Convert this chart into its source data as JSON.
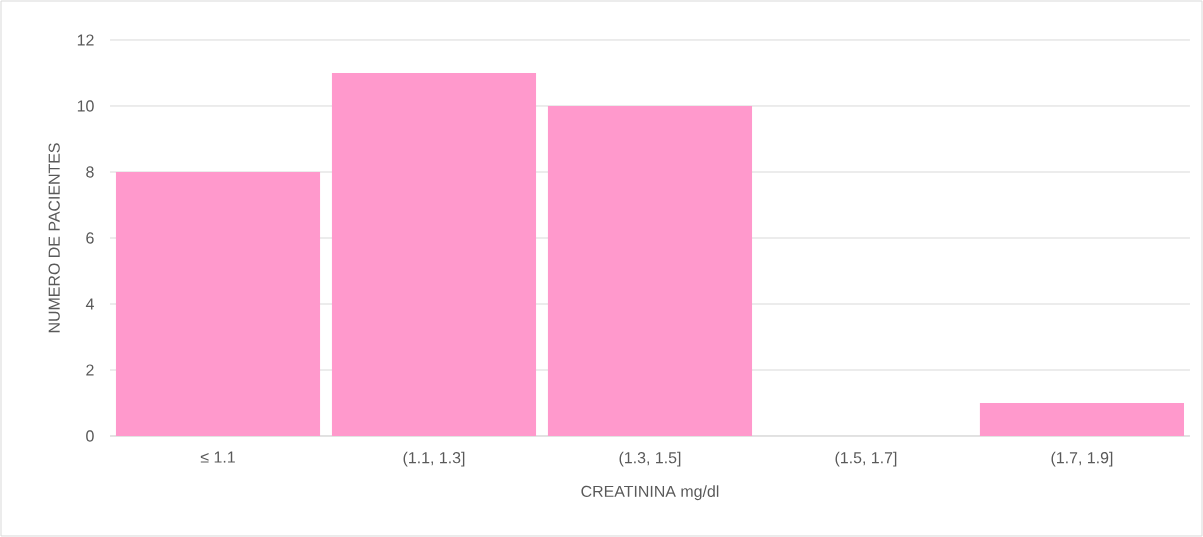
{
  "chart_data": {
    "type": "bar",
    "xlabel": "CREATININA mg/dl",
    "ylabel": "NUMERO DE PACIENTES",
    "categories": [
      "≤ 1.1",
      "(1.1, 1.3]",
      "(1.3, 1.5]",
      "(1.5, 1.7]",
      "(1.7, 1.9]"
    ],
    "values": [
      8,
      11,
      10,
      0,
      1
    ],
    "color": "#ff99cc",
    "ylim": [
      0,
      12
    ],
    "yticks": [
      0,
      2,
      4,
      6,
      8,
      10,
      12
    ],
    "grid": "y"
  }
}
